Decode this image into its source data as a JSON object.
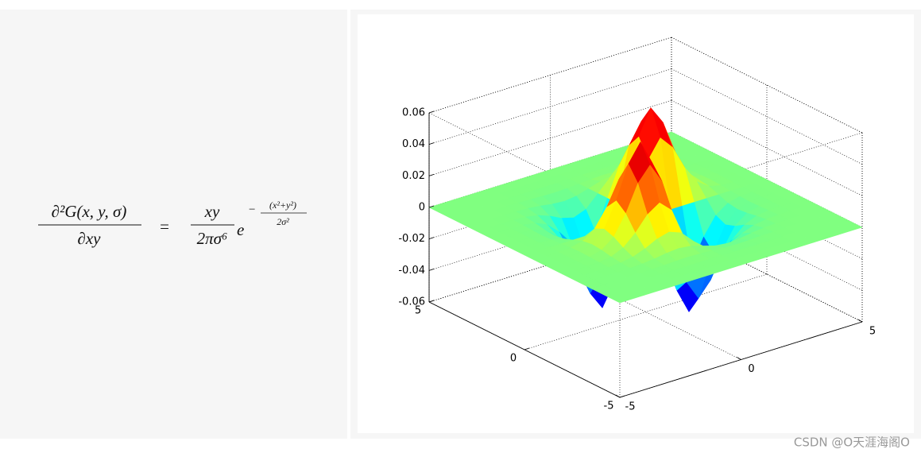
{
  "formula": {
    "lhs_numerator": "∂²G(x, y, σ)",
    "lhs_denominator": "∂xy",
    "equals": "=",
    "rhs_numerator": "xy",
    "rhs_denominator": "2πσ⁶",
    "base": "e",
    "exponent_sign": "−",
    "exponent_numerator": "(x²+y²)",
    "exponent_denominator": "2σ²"
  },
  "chart_data": {
    "type": "surface",
    "colormap": "jet",
    "x": [
      -5,
      -4.5,
      -4,
      -3.5,
      -3,
      -2.5,
      -2,
      -1.5,
      -1,
      -0.5,
      0,
      0.5,
      1,
      1.5,
      2,
      2.5,
      3,
      3.5,
      4,
      4.5,
      5
    ],
    "y": [
      -5,
      -4.5,
      -4,
      -3.5,
      -3,
      -2.5,
      -2,
      -1.5,
      -1,
      -0.5,
      0,
      0.5,
      1,
      1.5,
      2,
      2.5,
      3,
      3.5,
      4,
      4.5,
      5
    ],
    "z": [
      [
        0,
        0,
        0,
        0,
        0,
        0,
        0,
        0,
        0,
        0,
        0,
        0,
        0,
        0,
        0,
        0,
        0,
        0,
        0,
        0,
        0
      ],
      [
        0,
        0,
        0,
        0,
        0,
        0,
        0,
        0,
        0,
        0,
        0,
        0,
        0,
        0,
        0,
        0,
        0,
        0,
        0,
        0,
        0
      ],
      [
        0,
        0,
        0,
        0,
        0,
        0,
        0.0001,
        0.0001,
        0.0001,
        0.0001,
        0,
        -0.0001,
        -0.0001,
        -0.0001,
        -0.0001,
        0,
        0,
        0,
        0,
        0,
        0
      ],
      [
        0,
        0,
        0,
        0,
        0,
        0.0001,
        0.0003,
        0.0006,
        0.0008,
        0.0005,
        0,
        -0.0005,
        -0.0008,
        -0.0006,
        -0.0003,
        -0.0001,
        0,
        0,
        0,
        0,
        0
      ],
      [
        0,
        0,
        0,
        0,
        0.0002,
        0.0006,
        0.0014,
        0.0026,
        0.0032,
        0.0023,
        0,
        -0.0023,
        -0.0032,
        -0.0026,
        -0.0014,
        -0.0006,
        -0.0002,
        0,
        0,
        0,
        0
      ],
      [
        0,
        0,
        0,
        0.0001,
        0.0006,
        0.0019,
        0.0047,
        0.0085,
        0.0106,
        0.0077,
        0,
        -0.0077,
        -0.0106,
        -0.0085,
        -0.0047,
        -0.0019,
        -0.0006,
        -0.0001,
        0,
        0,
        0
      ],
      [
        0,
        0,
        0.0001,
        0.0003,
        0.0014,
        0.0047,
        0.0117,
        0.021,
        0.0261,
        0.019,
        0,
        -0.019,
        -0.0261,
        -0.021,
        -0.0117,
        -0.0047,
        -0.0014,
        -0.0003,
        -0.0001,
        0,
        0
      ],
      [
        0,
        0,
        0.0001,
        0.0006,
        0.0026,
        0.0085,
        0.021,
        0.0378,
        0.047,
        0.0342,
        0,
        -0.0342,
        -0.047,
        -0.0378,
        -0.021,
        -0.0085,
        -0.0026,
        -0.0006,
        -0.0001,
        0,
        0
      ],
      [
        0,
        0,
        0.0001,
        0.0008,
        0.0032,
        0.0106,
        0.0261,
        0.047,
        0.0586,
        0.0426,
        0,
        -0.0426,
        -0.0586,
        -0.047,
        -0.0261,
        -0.0106,
        -0.0032,
        -0.0008,
        -0.0001,
        0,
        0
      ],
      [
        0,
        0,
        0.0001,
        0.0005,
        0.0023,
        0.0077,
        0.019,
        0.0342,
        0.0426,
        0.031,
        0,
        -0.031,
        -0.0426,
        -0.0342,
        -0.019,
        -0.0077,
        -0.0023,
        -0.0005,
        -0.0001,
        0,
        0
      ],
      [
        0,
        0,
        0,
        0,
        0,
        0,
        0,
        0,
        0,
        0,
        0,
        0,
        0,
        0,
        0,
        0,
        0,
        0,
        0,
        0,
        0
      ],
      [
        0,
        0,
        -0.0001,
        -0.0005,
        -0.0023,
        -0.0077,
        -0.019,
        -0.0342,
        -0.0426,
        -0.031,
        0,
        0.031,
        0.0426,
        0.0342,
        0.019,
        0.0077,
        0.0023,
        0.0005,
        0.0001,
        0,
        0
      ],
      [
        0,
        0,
        -0.0001,
        -0.0008,
        -0.0032,
        -0.0106,
        -0.0261,
        -0.047,
        -0.0586,
        -0.0426,
        0,
        0.0426,
        0.0586,
        0.047,
        0.0261,
        0.0106,
        0.0032,
        0.0008,
        0.0001,
        0,
        0
      ],
      [
        0,
        0,
        -0.0001,
        -0.0006,
        -0.0026,
        -0.0085,
        -0.021,
        -0.0378,
        -0.047,
        -0.0342,
        0,
        0.0342,
        0.047,
        0.0378,
        0.021,
        0.0085,
        0.0026,
        0.0006,
        0.0001,
        0,
        0
      ],
      [
        0,
        0,
        -0.0001,
        -0.0003,
        -0.0014,
        -0.0047,
        -0.0117,
        -0.021,
        -0.0261,
        -0.019,
        0,
        0.019,
        0.0261,
        0.021,
        0.0117,
        0.0047,
        0.0014,
        0.0003,
        0.0001,
        0,
        0
      ],
      [
        0,
        0,
        0,
        -0.0001,
        -0.0006,
        -0.0019,
        -0.0047,
        -0.0085,
        -0.0106,
        -0.0077,
        0,
        0.0077,
        0.0106,
        0.0085,
        0.0047,
        0.0019,
        0.0006,
        0.0001,
        0,
        0,
        0
      ],
      [
        0,
        0,
        0,
        0,
        -0.0002,
        -0.0006,
        -0.0014,
        -0.0026,
        -0.0032,
        -0.0023,
        0,
        0.0023,
        0.0032,
        0.0026,
        0.0014,
        0.0006,
        0.0002,
        0,
        0,
        0,
        0
      ],
      [
        0,
        0,
        0,
        0,
        0,
        -0.0001,
        -0.0003,
        -0.0006,
        -0.0008,
        -0.0005,
        0,
        0.0005,
        0.0008,
        0.0006,
        0.0003,
        0.0001,
        0,
        0,
        0,
        0,
        0
      ],
      [
        0,
        0,
        0,
        0,
        0,
        0,
        -0.0001,
        -0.0001,
        -0.0001,
        -0.0001,
        0,
        0.0001,
        0.0001,
        0.0001,
        0.0001,
        0,
        0,
        0,
        0,
        0,
        0
      ],
      [
        0,
        0,
        0,
        0,
        0,
        0,
        0,
        0,
        0,
        0,
        0,
        0,
        0,
        0,
        0,
        0,
        0,
        0,
        0,
        0,
        0
      ],
      [
        0,
        0,
        0,
        0,
        0,
        0,
        0,
        0,
        0,
        0,
        0,
        0,
        0,
        0,
        0,
        0,
        0,
        0,
        0,
        0,
        0
      ]
    ],
    "xlim": [
      -5,
      5
    ],
    "xticks": [
      -5,
      0,
      5
    ],
    "ylim": [
      -5,
      5
    ],
    "yticks": [
      -5,
      0,
      5
    ],
    "zlim": [
      -0.06,
      0.06
    ],
    "zticks": [
      -0.06,
      -0.04,
      -0.02,
      0,
      0.02,
      0.04,
      0.06
    ],
    "grid": true
  },
  "watermark": "CSDN @O天涯海阁O"
}
